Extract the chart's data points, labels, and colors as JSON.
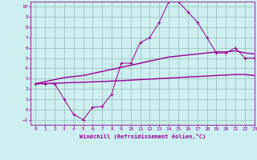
{
  "x": [
    0,
    1,
    2,
    3,
    4,
    5,
    6,
    7,
    8,
    9,
    10,
    11,
    12,
    13,
    14,
    15,
    16,
    17,
    18,
    19,
    20,
    21,
    22,
    23
  ],
  "y_main": [
    2.5,
    2.5,
    2.5,
    1.0,
    -0.5,
    -1.0,
    0.2,
    0.3,
    1.5,
    4.5,
    4.5,
    6.5,
    7.0,
    8.5,
    10.5,
    10.5,
    9.5,
    8.5,
    7.0,
    5.5,
    5.5,
    6.0,
    5.0,
    5.0
  ],
  "y_upper": [
    2.5,
    2.7,
    2.9,
    3.1,
    3.2,
    3.3,
    3.5,
    3.7,
    3.9,
    4.1,
    4.3,
    4.5,
    4.7,
    4.9,
    5.1,
    5.2,
    5.3,
    5.4,
    5.5,
    5.6,
    5.6,
    5.7,
    5.5,
    5.4
  ],
  "y_lower": [
    2.5,
    2.52,
    2.55,
    2.58,
    2.62,
    2.65,
    2.68,
    2.72,
    2.76,
    2.8,
    2.85,
    2.9,
    2.95,
    3.0,
    3.05,
    3.1,
    3.15,
    3.2,
    3.25,
    3.3,
    3.35,
    3.4,
    3.4,
    3.3
  ],
  "line_color": "#990099",
  "bg_color": "#cceeee",
  "grid_color": "#99bbbb",
  "xlabel": "Windchill (Refroidissement éolien,°C)",
  "ylim": [
    -1.5,
    10.5
  ],
  "xlim": [
    -0.5,
    23
  ],
  "yticks": [
    -1,
    0,
    1,
    2,
    3,
    4,
    5,
    6,
    7,
    8,
    9,
    10
  ],
  "xticks": [
    0,
    1,
    2,
    3,
    4,
    5,
    6,
    7,
    8,
    9,
    10,
    11,
    12,
    13,
    14,
    15,
    16,
    17,
    18,
    19,
    20,
    21,
    22,
    23
  ]
}
